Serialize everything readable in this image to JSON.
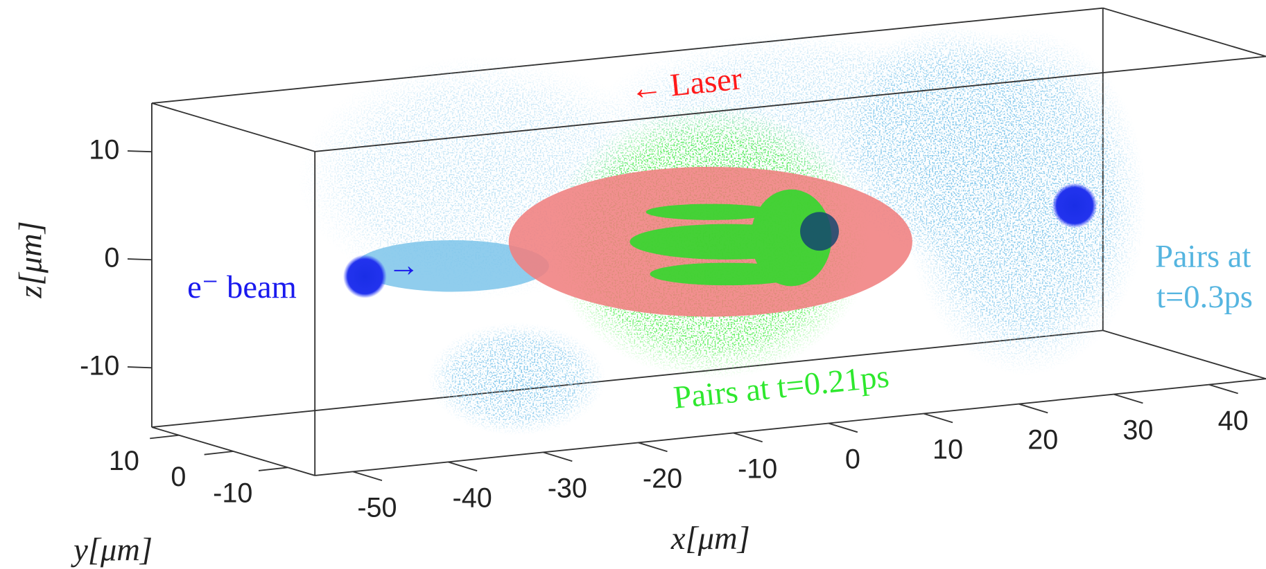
{
  "chart_data": {
    "type": "scatter3d",
    "xlabel": "x[μm]",
    "ylabel": "y[μm]",
    "zlabel": "z[μm]",
    "xlim": [
      -54,
      46
    ],
    "ylim": [
      -15,
      15
    ],
    "zlim": [
      -15.5,
      14.5
    ],
    "xticks": [
      -50,
      -40,
      -30,
      -20,
      -10,
      0,
      10,
      20,
      30,
      40
    ],
    "yticks": [
      -10,
      0,
      10
    ],
    "zticks": [
      -10,
      0,
      10
    ],
    "annotations": [
      {
        "text": "← Laser",
        "color": "#ff1a1a"
      },
      {
        "text": "e⁻ beam",
        "color": "#1a1aee"
      },
      {
        "text": "→",
        "color": "#1a1aee"
      },
      {
        "text": "Pairs at t=0.21ps",
        "color": "#2ee82e"
      },
      {
        "text": "Pairs at",
        "color": "#55b5e0"
      },
      {
        "text": "t=0.3ps",
        "color": "#55b5e0"
      }
    ]
  }
}
